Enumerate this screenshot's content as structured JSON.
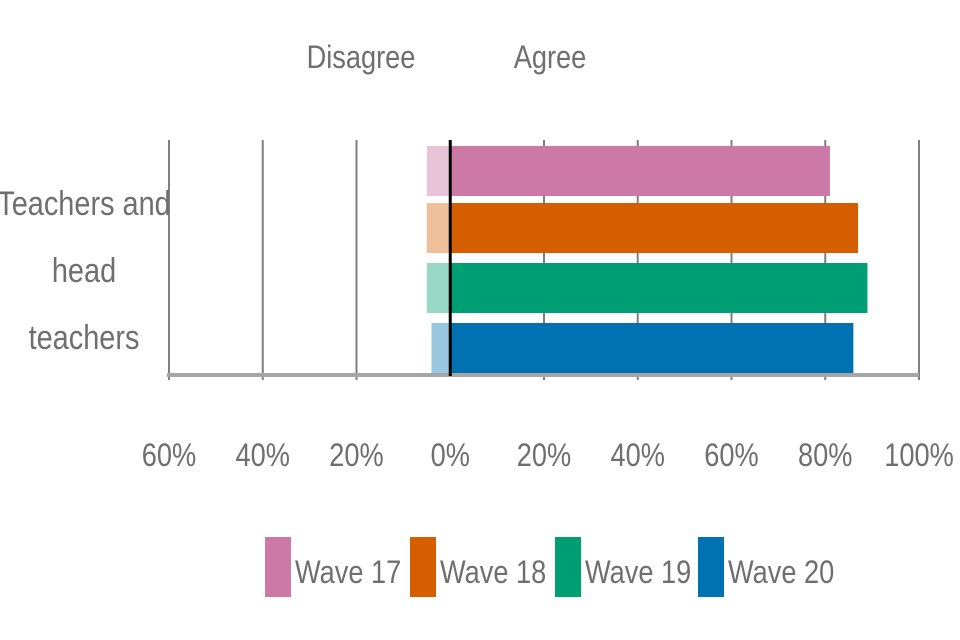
{
  "chart_data": {
    "type": "bar",
    "orientation": "horizontal-diverging",
    "category": "Teachers and head teachers",
    "category_lines": [
      "Teachers and",
      "head",
      "teachers"
    ],
    "headers": {
      "disagree": "Disagree",
      "agree": "Agree"
    },
    "xlim": [
      -60,
      100
    ],
    "ticks": [
      -60,
      -40,
      -20,
      0,
      20,
      40,
      60,
      80,
      100
    ],
    "tick_labels": [
      "60%",
      "40%",
      "20%",
      "0%",
      "20%",
      "40%",
      "60%",
      "80%",
      "100%"
    ],
    "series": [
      {
        "name": "Wave 17",
        "agree": 81,
        "disagree": 5,
        "color": "#cc79a7",
        "light": "#e8c4d9"
      },
      {
        "name": "Wave 18",
        "agree": 87,
        "disagree": 5,
        "color": "#d55e00",
        "light": "#efbf99"
      },
      {
        "name": "Wave 19",
        "agree": 89,
        "disagree": 5,
        "color": "#009e73",
        "light": "#99d8c7"
      },
      {
        "name": "Wave 20",
        "agree": 86,
        "disagree": 4,
        "color": "#0072b2",
        "light": "#99c7e0"
      }
    ],
    "grid": true,
    "legend": "bottom"
  }
}
